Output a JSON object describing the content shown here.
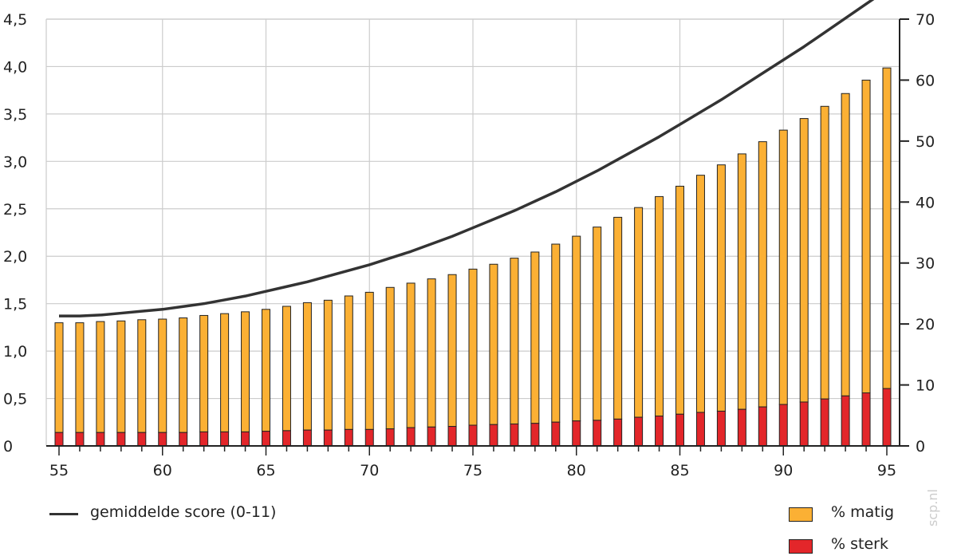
{
  "chart_data": {
    "type": "bar",
    "x": [
      55,
      56,
      57,
      58,
      59,
      60,
      61,
      62,
      63,
      64,
      65,
      66,
      67,
      68,
      69,
      70,
      71,
      72,
      73,
      74,
      75,
      76,
      77,
      78,
      79,
      80,
      81,
      82,
      83,
      84,
      85,
      86,
      87,
      88,
      89,
      90,
      91,
      92,
      93,
      94,
      95
    ],
    "series": [
      {
        "name": "% sterk",
        "axis": "right",
        "color": "#e3262a",
        "values": [
          2.2,
          2.2,
          2.2,
          2.2,
          2.2,
          2.2,
          2.2,
          2.3,
          2.3,
          2.3,
          2.4,
          2.5,
          2.6,
          2.6,
          2.7,
          2.7,
          2.8,
          3.0,
          3.1,
          3.2,
          3.4,
          3.5,
          3.6,
          3.7,
          3.9,
          4.1,
          4.2,
          4.4,
          4.7,
          4.9,
          5.2,
          5.5,
          5.7,
          6.0,
          6.4,
          6.8,
          7.2,
          7.7,
          8.2,
          8.7,
          9.4
        ]
      },
      {
        "name": "% matig",
        "axis": "right",
        "color": "#fbb034",
        "values": [
          18.0,
          18.0,
          18.2,
          18.3,
          18.5,
          18.6,
          18.8,
          19.1,
          19.4,
          19.7,
          20.0,
          20.4,
          20.9,
          21.3,
          21.9,
          22.5,
          23.2,
          23.7,
          24.3,
          24.9,
          25.6,
          26.3,
          27.2,
          28.1,
          29.2,
          30.3,
          31.7,
          33.1,
          34.4,
          36.0,
          37.4,
          38.9,
          40.4,
          41.9,
          43.5,
          45.0,
          46.5,
          48.0,
          49.6,
          51.3,
          52.6
        ]
      },
      {
        "name": "gemiddelde score (0-11)",
        "type": "line",
        "axis": "left",
        "color": "#333333",
        "values": [
          1.37,
          1.37,
          1.38,
          1.4,
          1.42,
          1.44,
          1.47,
          1.5,
          1.54,
          1.58,
          1.63,
          1.68,
          1.73,
          1.79,
          1.85,
          1.91,
          1.98,
          2.05,
          2.13,
          2.21,
          2.3,
          2.39,
          2.48,
          2.58,
          2.68,
          2.79,
          2.9,
          3.02,
          3.14,
          3.26,
          3.39,
          3.52,
          3.65,
          3.79,
          3.93,
          4.07,
          4.21,
          4.36,
          4.51,
          4.66,
          4.81
        ]
      }
    ],
    "stacked": true,
    "y_left": {
      "ylim": [
        0,
        4.5
      ],
      "ticks": [
        "0",
        "0,5",
        "1,0",
        "1,5",
        "2,0",
        "2,5",
        "3,0",
        "3,5",
        "4,0",
        "4,5"
      ]
    },
    "y_right": {
      "ylim": [
        0,
        70
      ],
      "ticks": [
        "0",
        "10",
        "20",
        "30",
        "40",
        "50",
        "60",
        "70"
      ]
    },
    "x_ticks": [
      "55",
      "60",
      "65",
      "70",
      "75",
      "80",
      "85",
      "90",
      "95"
    ],
    "grid": true
  },
  "legend": {
    "line_label": "gemiddelde score (0-11)",
    "matig_label": "% matig",
    "sterk_label": "% sterk"
  },
  "watermark": "scp.nl"
}
